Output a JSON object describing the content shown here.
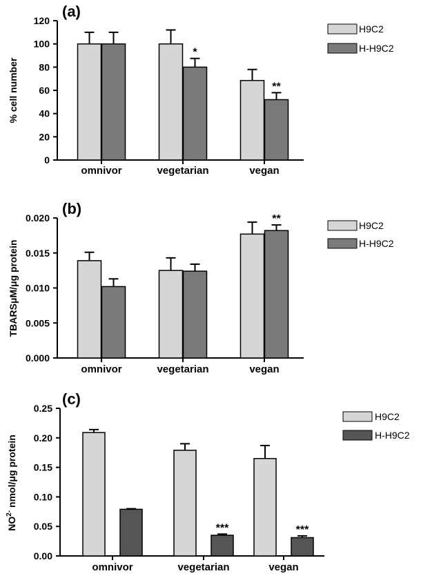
{
  "chart_data": [
    {
      "type": "bar",
      "panel_label": "(a)",
      "categories": [
        "omnivor",
        "vegetarian",
        "vegan"
      ],
      "series": [
        {
          "name": "H9C2",
          "values": [
            100,
            100,
            68.5
          ],
          "errors": [
            10,
            12,
            9.5
          ]
        },
        {
          "name": "H-H9C2",
          "values": [
            100,
            80,
            52
          ],
          "errors": [
            10,
            7.5,
            6
          ]
        }
      ],
      "significance": [
        {
          "category": "vegetarian",
          "series": "H-H9C2",
          "text": "*"
        },
        {
          "category": "vegan",
          "series": "H-H9C2",
          "text": "**"
        }
      ],
      "ylabel": "% cell number",
      "ylim": [
        0,
        120
      ],
      "yticks": [
        0,
        20,
        40,
        60,
        80,
        100,
        120
      ],
      "ytick_labels": [
        "0",
        "20",
        "40",
        "60",
        "80",
        "100",
        "120"
      ],
      "legend": "right",
      "grid": false
    },
    {
      "type": "bar",
      "panel_label": "(b)",
      "categories": [
        "omnivor",
        "vegetarian",
        "vegan"
      ],
      "series": [
        {
          "name": "H9C2",
          "values": [
            0.0139,
            0.0125,
            0.0177
          ],
          "errors": [
            0.0012,
            0.0018,
            0.0017
          ]
        },
        {
          "name": "H-H9C2",
          "values": [
            0.0102,
            0.0124,
            0.0182
          ],
          "errors": [
            0.0011,
            0.001,
            0.0008
          ]
        }
      ],
      "significance": [
        {
          "category": "vegan",
          "series": "H-H9C2",
          "text": "**"
        }
      ],
      "ylabel": "TBARSμM/μg protein",
      "ylim": [
        0,
        0.02
      ],
      "yticks": [
        0,
        0.005,
        0.01,
        0.015,
        0.02
      ],
      "ytick_labels": [
        "0.000",
        "0.005",
        "0.010",
        "0.015",
        "0.020"
      ],
      "legend": "right",
      "grid": false
    },
    {
      "type": "bar",
      "panel_label": "(c)",
      "categories": [
        "omnivor",
        "vegetarian",
        "vegan"
      ],
      "series": [
        {
          "name": "H9C2",
          "values": [
            0.209,
            0.179,
            0.165
          ],
          "errors": [
            0.005,
            0.011,
            0.022
          ]
        },
        {
          "name": "H-H9C2",
          "values": [
            0.079,
            0.035,
            0.031
          ],
          "errors": [
            0.001,
            0.002,
            0.003
          ]
        }
      ],
      "significance": [
        {
          "category": "vegetarian",
          "series": "H-H9C2",
          "text": "***"
        },
        {
          "category": "vegan",
          "series": "H-H9C2",
          "text": "***"
        }
      ],
      "ylabel_main": "NO",
      "ylabel_sup": "2-",
      "ylabel_rest": " nmol/μg protein",
      "ylim": [
        0,
        0.25
      ],
      "yticks": [
        0,
        0.05,
        0.1,
        0.15,
        0.2,
        0.25
      ],
      "ytick_labels": [
        "0.00",
        "0.05",
        "0.10",
        "0.15",
        "0.20",
        "0.25"
      ],
      "legend": "right",
      "grid": false
    }
  ],
  "colors": {
    "H9C2": "#d6d6d6",
    "H-H9C2_ab": "#7a7a7a",
    "H-H9C2_c": "#555555",
    "axis": "#000000"
  }
}
